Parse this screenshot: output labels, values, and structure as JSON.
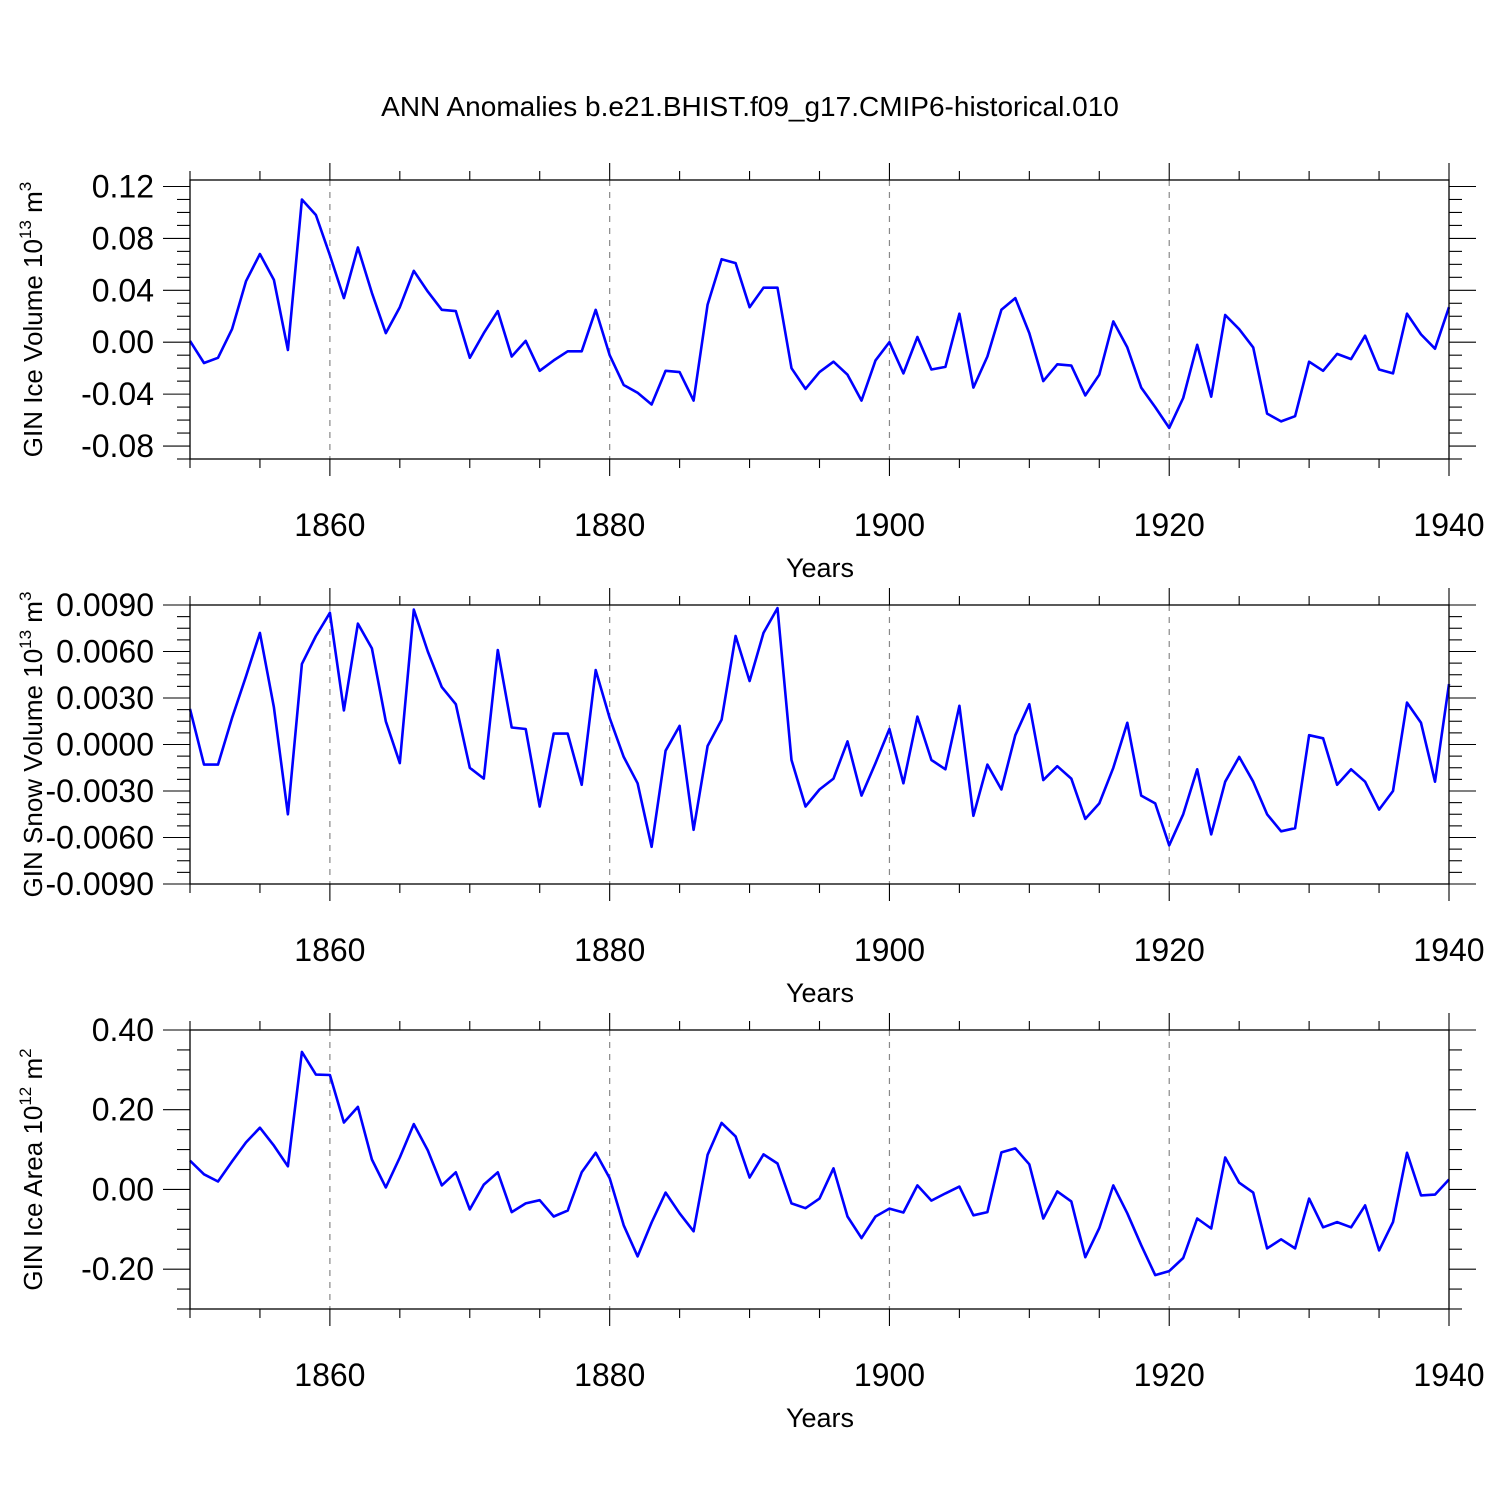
{
  "chart_data": [
    {
      "type": "line",
      "title": "ANN Anomalies b.e21.BHIST.f09_g17.CMIP6-historical.010",
      "ylabel": "GIN Ice Volume 10",
      "ylabel_exp": "13",
      "ylabel_unit": " m",
      "ylabel_unit_exp": "3",
      "xlabel": "Years",
      "xlim": [
        1850,
        1940
      ],
      "ylim": [
        -0.09,
        0.125
      ],
      "xticks": [
        1860,
        1880,
        1900,
        1920,
        1940
      ],
      "xtick_labels": [
        "1860",
        "1880",
        "1900",
        "1920",
        "1940"
      ],
      "yticks": [
        0.12,
        0.08,
        0.04,
        0.0,
        -0.04,
        -0.08
      ],
      "ytick_labels": [
        "0.12",
        "0.08",
        "0.04",
        "0.00",
        "-0.04",
        "-0.08"
      ],
      "ycolor": "#0000ff",
      "series": [
        {
          "name": "GIN Ice Volume",
          "x_start": 1850,
          "values": [
            0.001,
            -0.016,
            -0.012,
            0.01,
            0.047,
            0.068,
            0.048,
            -0.006,
            0.11,
            0.098,
            0.067,
            0.034,
            0.073,
            0.038,
            0.007,
            0.027,
            0.055,
            0.039,
            0.025,
            0.024,
            -0.012,
            0.007,
            0.024,
            -0.011,
            0.001,
            -0.022,
            -0.014,
            -0.007,
            -0.007,
            0.025,
            -0.01,
            -0.033,
            -0.039,
            -0.048,
            -0.022,
            -0.023,
            -0.045,
            0.029,
            0.064,
            0.061,
            0.027,
            0.042,
            0.042,
            -0.02,
            -0.036,
            -0.023,
            -0.015,
            -0.025,
            -0.045,
            -0.014,
            0.0,
            -0.024,
            0.004,
            -0.021,
            -0.019,
            0.022,
            -0.035,
            -0.011,
            0.025,
            0.034,
            0.007,
            -0.03,
            -0.017,
            -0.018,
            -0.041,
            -0.025,
            0.016,
            -0.004,
            -0.035,
            -0.05,
            -0.066,
            -0.043,
            -0.002,
            -0.042,
            0.021,
            0.01,
            -0.004,
            -0.055,
            -0.061,
            -0.057,
            -0.015,
            -0.022,
            -0.009,
            -0.013,
            0.005,
            -0.021,
            -0.024,
            0.022,
            0.006,
            -0.005,
            0.027
          ]
        }
      ]
    },
    {
      "type": "line",
      "ylabel": "GIN Snow Volume 10",
      "ylabel_exp": "13",
      "ylabel_unit": " m",
      "ylabel_unit_exp": "3",
      "xlabel": "Years",
      "xlim": [
        1850,
        1940
      ],
      "ylim": [
        -0.009,
        0.009
      ],
      "xticks": [
        1860,
        1880,
        1900,
        1920,
        1940
      ],
      "xtick_labels": [
        "1860",
        "1880",
        "1900",
        "1920",
        "1940"
      ],
      "yticks": [
        0.009,
        0.006,
        0.003,
        0.0,
        -0.003,
        -0.006,
        -0.009
      ],
      "ytick_labels": [
        "0.0090",
        "0.0060",
        "0.0030",
        "0.0000",
        "-0.0030",
        "-0.0060",
        "-0.0090"
      ],
      "series": [
        {
          "name": "GIN Snow Volume",
          "x_start": 1850,
          "values": [
            0.0023,
            -0.0013,
            -0.0013,
            0.0017,
            0.0044,
            0.0072,
            0.0024,
            -0.0045,
            0.0052,
            0.007,
            0.0085,
            0.0022,
            0.0078,
            0.0062,
            0.0015,
            -0.0012,
            0.0087,
            0.006,
            0.0037,
            0.0026,
            -0.0015,
            -0.0022,
            0.0061,
            0.0011,
            0.001,
            -0.004,
            0.0007,
            0.0007,
            -0.0026,
            0.0048,
            0.0017,
            -0.0008,
            -0.0025,
            -0.0066,
            -0.0004,
            0.0012,
            -0.0055,
            -0.0001,
            0.0016,
            0.007,
            0.0041,
            0.0072,
            0.0088,
            -0.001,
            -0.004,
            -0.0029,
            -0.0022,
            0.0002,
            -0.0033,
            -0.0012,
            0.001,
            -0.0025,
            0.0018,
            -0.001,
            -0.0016,
            0.0025,
            -0.0046,
            -0.0013,
            -0.0029,
            0.0006,
            0.0026,
            -0.0023,
            -0.0014,
            -0.0022,
            -0.0048,
            -0.0038,
            -0.0015,
            0.0014,
            -0.0033,
            -0.0038,
            -0.0065,
            -0.0045,
            -0.0016,
            -0.0058,
            -0.0024,
            -0.0008,
            -0.0024,
            -0.0045,
            -0.0056,
            -0.0054,
            0.0006,
            0.0004,
            -0.0026,
            -0.0016,
            -0.0024,
            -0.0042,
            -0.003,
            0.0027,
            0.0014,
            -0.0024,
            0.0039
          ]
        }
      ]
    },
    {
      "type": "line",
      "ylabel": "GIN Ice Area 10",
      "ylabel_exp": "12",
      "ylabel_unit": " m",
      "ylabel_unit_exp": "2",
      "xlabel": "Years",
      "xlim": [
        1850,
        1940
      ],
      "ylim": [
        -0.3,
        0.4
      ],
      "xticks": [
        1860,
        1880,
        1900,
        1920,
        1940
      ],
      "xtick_labels": [
        "1860",
        "1880",
        "1900",
        "1920",
        "1940"
      ],
      "yticks": [
        0.4,
        0.2,
        0.0,
        -0.2
      ],
      "ytick_labels": [
        "0.40",
        "0.20",
        "0.00",
        "-0.20"
      ],
      "series": [
        {
          "name": "GIN Ice Area",
          "x_start": 1850,
          "values": [
            0.072,
            0.038,
            0.02,
            0.07,
            0.118,
            0.155,
            0.11,
            0.058,
            0.345,
            0.288,
            0.287,
            0.168,
            0.207,
            0.075,
            0.005,
            0.08,
            0.164,
            0.098,
            0.01,
            0.043,
            -0.05,
            0.012,
            0.043,
            -0.057,
            -0.035,
            -0.027,
            -0.068,
            -0.053,
            0.043,
            0.092,
            0.028,
            -0.09,
            -0.168,
            -0.083,
            -0.008,
            -0.06,
            -0.105,
            0.087,
            0.167,
            0.133,
            0.03,
            0.088,
            0.065,
            -0.035,
            -0.047,
            -0.023,
            0.053,
            -0.068,
            -0.122,
            -0.068,
            -0.048,
            -0.058,
            0.01,
            -0.028,
            -0.01,
            0.007,
            -0.065,
            -0.057,
            0.093,
            0.103,
            0.063,
            -0.073,
            -0.005,
            -0.03,
            -0.17,
            -0.097,
            0.01,
            -0.06,
            -0.14,
            -0.215,
            -0.205,
            -0.172,
            -0.073,
            -0.098,
            0.08,
            0.017,
            -0.008,
            -0.148,
            -0.125,
            -0.148,
            -0.023,
            -0.095,
            -0.082,
            -0.095,
            -0.04,
            -0.153,
            -0.082,
            0.092,
            -0.015,
            -0.013,
            0.025
          ]
        }
      ]
    }
  ]
}
